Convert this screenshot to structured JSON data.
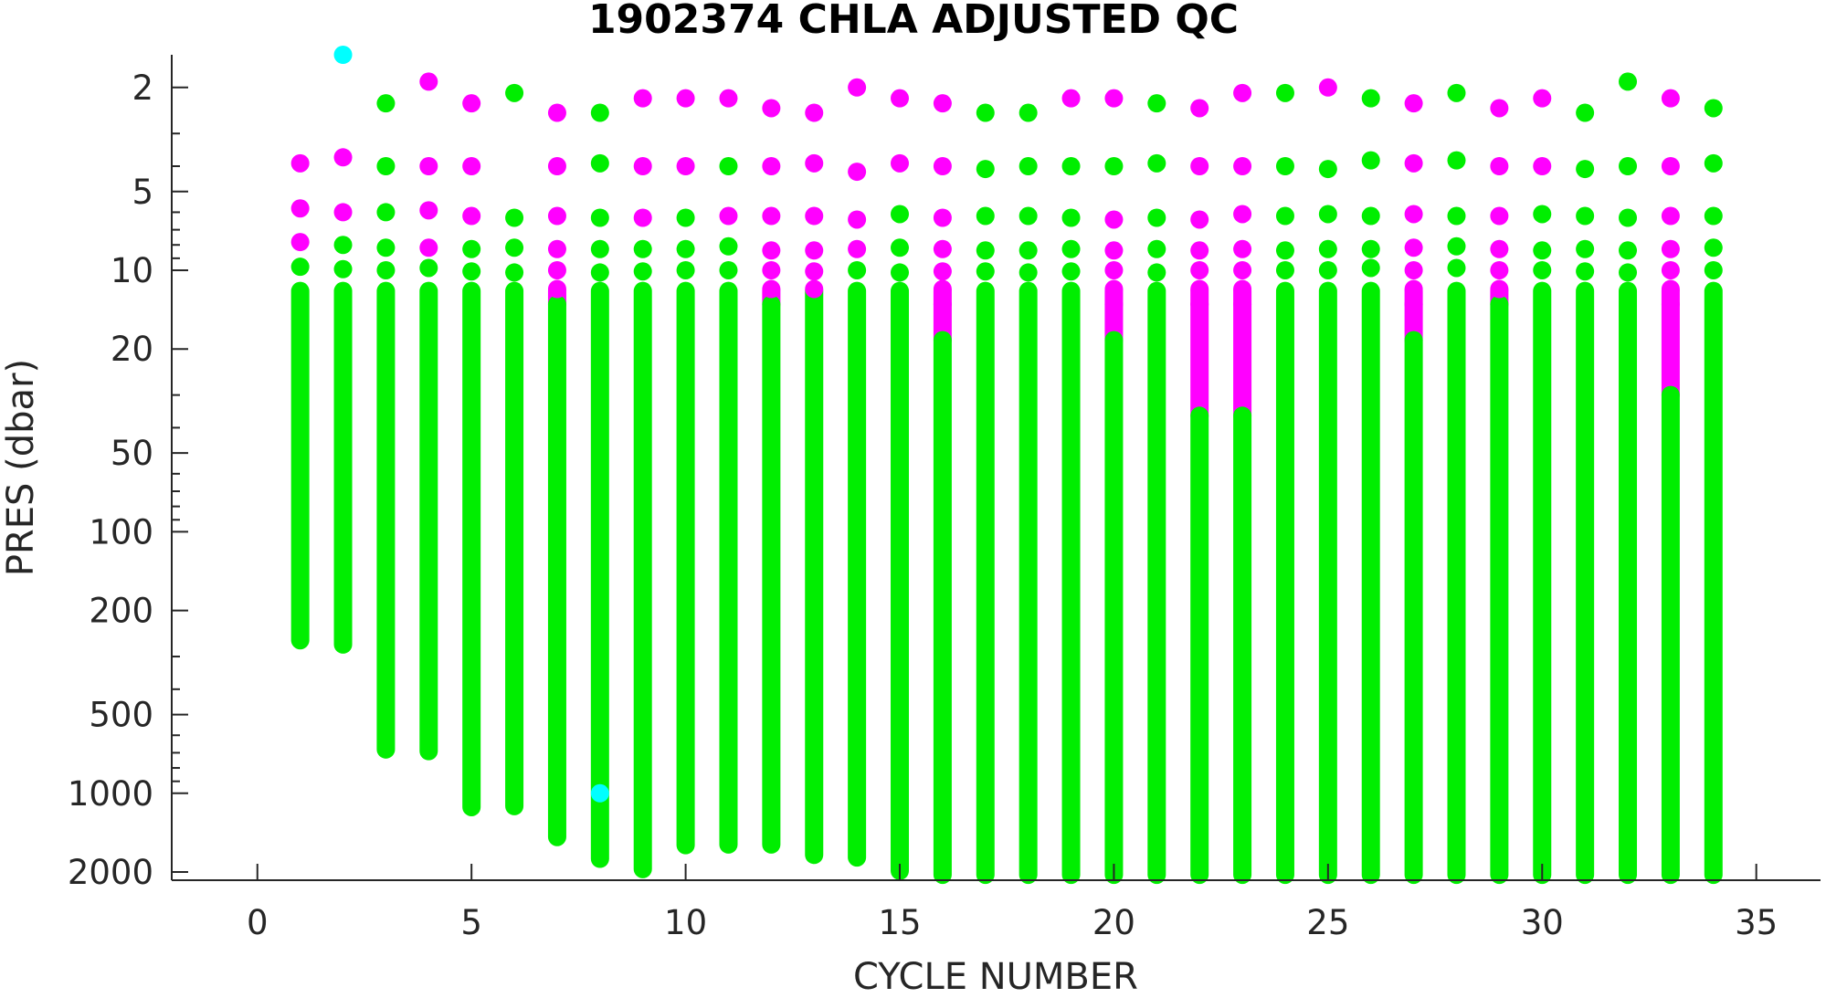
{
  "chart_data": {
    "type": "scatter",
    "title": "1902374  CHLA ADJUSTED QC",
    "xlabel": "CYCLE NUMBER",
    "ylabel": "PRES (dbar)",
    "xlim": [
      -2,
      36.5
    ],
    "ylim": [
      1.5,
      2150
    ],
    "y_scale": "log",
    "y_reversed": true,
    "x_ticks": [
      0,
      5,
      10,
      15,
      20,
      25,
      30,
      35
    ],
    "x_tick_labels": [
      "0",
      "5",
      "10",
      "15",
      "20",
      "25",
      "30",
      "35"
    ],
    "y_ticks": [
      2,
      5,
      10,
      20,
      50,
      100,
      200,
      500,
      1000,
      2000
    ],
    "y_tick_labels": [
      "2",
      "5",
      "10",
      "20",
      "50",
      "100",
      "200",
      "500",
      "1000",
      "2000"
    ],
    "grid": false,
    "legend": "none",
    "colors": {
      "green": "#00ee00",
      "magenta": "#ff00ff",
      "cyan": "#00ffff"
    },
    "profiles": [
      {
        "cycle": 1,
        "max_pres": 260,
        "flag_to": 0,
        "near": [
          [
            3.9,
            "magenta"
          ],
          [
            5.8,
            "magenta"
          ],
          [
            7.8,
            "magenta"
          ],
          [
            9.7,
            "green"
          ]
        ]
      },
      {
        "cycle": 2,
        "max_pres": 270,
        "flag_to": 0,
        "near": [
          [
            1.5,
            "cyan"
          ],
          [
            3.7,
            "magenta"
          ],
          [
            6.0,
            "magenta"
          ],
          [
            8.0,
            "green"
          ],
          [
            9.9,
            "green"
          ]
        ]
      },
      {
        "cycle": 3,
        "max_pres": 680,
        "flag_to": 0,
        "near": [
          [
            2.3,
            "green"
          ],
          [
            4.0,
            "green"
          ],
          [
            6.0,
            "green"
          ],
          [
            8.2,
            "green"
          ],
          [
            10.0,
            "green"
          ]
        ]
      },
      {
        "cycle": 4,
        "max_pres": 690,
        "flag_to": 0,
        "near": [
          [
            1.9,
            "magenta"
          ],
          [
            4.0,
            "magenta"
          ],
          [
            5.9,
            "magenta"
          ],
          [
            8.2,
            "magenta"
          ],
          [
            9.8,
            "green"
          ]
        ]
      },
      {
        "cycle": 5,
        "max_pres": 1130,
        "flag_to": 0,
        "near": [
          [
            2.3,
            "magenta"
          ],
          [
            4.0,
            "magenta"
          ],
          [
            6.2,
            "magenta"
          ],
          [
            8.3,
            "green"
          ],
          [
            10.1,
            "green"
          ]
        ]
      },
      {
        "cycle": 6,
        "max_pres": 1120,
        "flag_to": 0,
        "near": [
          [
            2.1,
            "green"
          ],
          [
            6.3,
            "green"
          ],
          [
            8.2,
            "green"
          ],
          [
            10.2,
            "green"
          ]
        ]
      },
      {
        "cycle": 7,
        "max_pres": 1470,
        "flag_to": 13.5,
        "near": [
          [
            2.5,
            "magenta"
          ],
          [
            4.0,
            "magenta"
          ],
          [
            6.2,
            "magenta"
          ],
          [
            8.3,
            "magenta"
          ],
          [
            10.0,
            "magenta"
          ],
          [
            11.8,
            "magenta"
          ]
        ]
      },
      {
        "cycle": 8,
        "max_pres": 1780,
        "flag_to": 0,
        "near": [
          [
            2.5,
            "green"
          ],
          [
            3.9,
            "green"
          ],
          [
            6.3,
            "green"
          ],
          [
            8.3,
            "green"
          ],
          [
            10.2,
            "green"
          ],
          [
            1000,
            "cyan"
          ]
        ]
      },
      {
        "cycle": 9,
        "max_pres": 1950,
        "flag_to": 0,
        "near": [
          [
            2.2,
            "magenta"
          ],
          [
            4.0,
            "magenta"
          ],
          [
            6.3,
            "magenta"
          ],
          [
            8.3,
            "green"
          ],
          [
            10.1,
            "green"
          ]
        ]
      },
      {
        "cycle": 10,
        "max_pres": 1580,
        "flag_to": 0,
        "near": [
          [
            2.2,
            "magenta"
          ],
          [
            4.0,
            "magenta"
          ],
          [
            6.3,
            "green"
          ],
          [
            8.3,
            "green"
          ],
          [
            10.0,
            "green"
          ]
        ]
      },
      {
        "cycle": 11,
        "max_pres": 1570,
        "flag_to": 0,
        "near": [
          [
            2.2,
            "magenta"
          ],
          [
            4.0,
            "green"
          ],
          [
            6.2,
            "magenta"
          ],
          [
            8.1,
            "green"
          ],
          [
            10.0,
            "green"
          ]
        ]
      },
      {
        "cycle": 12,
        "max_pres": 1570,
        "flag_to": 13.5,
        "near": [
          [
            2.4,
            "magenta"
          ],
          [
            4.0,
            "magenta"
          ],
          [
            6.2,
            "magenta"
          ],
          [
            8.4,
            "magenta"
          ],
          [
            10.0,
            "magenta"
          ],
          [
            11.8,
            "magenta"
          ]
        ]
      },
      {
        "cycle": 13,
        "max_pres": 1720,
        "flag_to": 0,
        "near": [
          [
            2.5,
            "magenta"
          ],
          [
            3.9,
            "magenta"
          ],
          [
            6.2,
            "magenta"
          ],
          [
            8.4,
            "magenta"
          ],
          [
            10.1,
            "magenta"
          ],
          [
            11.8,
            "magenta"
          ]
        ]
      },
      {
        "cycle": 14,
        "max_pres": 1760,
        "flag_to": 0,
        "near": [
          [
            2.0,
            "magenta"
          ],
          [
            4.2,
            "magenta"
          ],
          [
            6.4,
            "magenta"
          ],
          [
            8.3,
            "magenta"
          ],
          [
            10.0,
            "green"
          ]
        ]
      },
      {
        "cycle": 15,
        "max_pres": 1980,
        "flag_to": 0,
        "near": [
          [
            2.2,
            "magenta"
          ],
          [
            3.9,
            "magenta"
          ],
          [
            6.1,
            "green"
          ],
          [
            8.2,
            "green"
          ],
          [
            10.2,
            "green"
          ]
        ]
      },
      {
        "cycle": 16,
        "max_pres": 2050,
        "flag_to": 18.5,
        "near": [
          [
            2.3,
            "magenta"
          ],
          [
            4.0,
            "magenta"
          ],
          [
            6.3,
            "magenta"
          ],
          [
            8.3,
            "magenta"
          ],
          [
            10.1,
            "magenta"
          ],
          [
            11.8,
            "magenta"
          ],
          [
            13.5,
            "magenta"
          ]
        ]
      },
      {
        "cycle": 17,
        "max_pres": 2050,
        "flag_to": 0,
        "near": [
          [
            2.5,
            "green"
          ],
          [
            4.1,
            "green"
          ],
          [
            6.2,
            "green"
          ],
          [
            8.4,
            "green"
          ],
          [
            10.1,
            "green"
          ]
        ]
      },
      {
        "cycle": 18,
        "max_pres": 2050,
        "flag_to": 0,
        "near": [
          [
            2.5,
            "green"
          ],
          [
            4.0,
            "green"
          ],
          [
            6.2,
            "green"
          ],
          [
            8.4,
            "green"
          ],
          [
            10.2,
            "green"
          ]
        ]
      },
      {
        "cycle": 19,
        "max_pres": 2050,
        "flag_to": 0,
        "near": [
          [
            2.2,
            "magenta"
          ],
          [
            4.0,
            "green"
          ],
          [
            6.3,
            "green"
          ],
          [
            8.3,
            "green"
          ],
          [
            10.1,
            "green"
          ]
        ]
      },
      {
        "cycle": 20,
        "max_pres": 2050,
        "flag_to": 18.5,
        "near": [
          [
            2.2,
            "magenta"
          ],
          [
            4.0,
            "green"
          ],
          [
            6.4,
            "magenta"
          ],
          [
            8.4,
            "magenta"
          ],
          [
            10.0,
            "magenta"
          ],
          [
            11.8,
            "magenta"
          ],
          [
            13.5,
            "magenta"
          ]
        ]
      },
      {
        "cycle": 21,
        "max_pres": 2050,
        "flag_to": 0,
        "near": [
          [
            2.3,
            "green"
          ],
          [
            3.9,
            "green"
          ],
          [
            6.3,
            "green"
          ],
          [
            8.3,
            "green"
          ],
          [
            10.2,
            "green"
          ]
        ]
      },
      {
        "cycle": 22,
        "max_pres": 2050,
        "flag_to": 36,
        "near": [
          [
            2.4,
            "magenta"
          ],
          [
            4.0,
            "magenta"
          ],
          [
            6.4,
            "magenta"
          ],
          [
            8.4,
            "magenta"
          ],
          [
            10.0,
            "magenta"
          ],
          [
            11.8,
            "magenta"
          ],
          [
            13.5,
            "magenta"
          ]
        ]
      },
      {
        "cycle": 23,
        "max_pres": 2050,
        "flag_to": 36,
        "near": [
          [
            2.1,
            "magenta"
          ],
          [
            4.0,
            "magenta"
          ],
          [
            6.1,
            "magenta"
          ],
          [
            8.3,
            "magenta"
          ],
          [
            10.0,
            "magenta"
          ],
          [
            11.8,
            "magenta"
          ],
          [
            13.5,
            "magenta"
          ]
        ]
      },
      {
        "cycle": 24,
        "max_pres": 2050,
        "flag_to": 0,
        "near": [
          [
            2.1,
            "green"
          ],
          [
            4.0,
            "green"
          ],
          [
            6.2,
            "green"
          ],
          [
            8.4,
            "green"
          ],
          [
            10.0,
            "green"
          ]
        ]
      },
      {
        "cycle": 25,
        "max_pres": 2050,
        "flag_to": 0,
        "near": [
          [
            2.0,
            "magenta"
          ],
          [
            4.1,
            "green"
          ],
          [
            6.1,
            "green"
          ],
          [
            8.3,
            "green"
          ],
          [
            10.0,
            "green"
          ]
        ]
      },
      {
        "cycle": 26,
        "max_pres": 2050,
        "flag_to": 0,
        "near": [
          [
            2.2,
            "green"
          ],
          [
            3.8,
            "green"
          ],
          [
            6.2,
            "green"
          ],
          [
            8.3,
            "green"
          ],
          [
            9.8,
            "green"
          ]
        ]
      },
      {
        "cycle": 27,
        "max_pres": 2050,
        "flag_to": 18.5,
        "near": [
          [
            2.3,
            "magenta"
          ],
          [
            3.9,
            "magenta"
          ],
          [
            6.1,
            "magenta"
          ],
          [
            8.2,
            "magenta"
          ],
          [
            10.0,
            "magenta"
          ],
          [
            11.8,
            "magenta"
          ],
          [
            13.5,
            "magenta"
          ]
        ]
      },
      {
        "cycle": 28,
        "max_pres": 2050,
        "flag_to": 0,
        "near": [
          [
            2.1,
            "green"
          ],
          [
            3.8,
            "green"
          ],
          [
            6.2,
            "green"
          ],
          [
            8.1,
            "green"
          ],
          [
            9.8,
            "green"
          ]
        ]
      },
      {
        "cycle": 29,
        "max_pres": 2050,
        "flag_to": 13.5,
        "near": [
          [
            2.4,
            "magenta"
          ],
          [
            4.0,
            "magenta"
          ],
          [
            6.2,
            "magenta"
          ],
          [
            8.3,
            "magenta"
          ],
          [
            10.0,
            "magenta"
          ],
          [
            11.8,
            "magenta"
          ]
        ]
      },
      {
        "cycle": 30,
        "max_pres": 2050,
        "flag_to": 0,
        "near": [
          [
            2.2,
            "magenta"
          ],
          [
            4.0,
            "magenta"
          ],
          [
            6.1,
            "green"
          ],
          [
            8.4,
            "green"
          ],
          [
            10.0,
            "green"
          ]
        ]
      },
      {
        "cycle": 31,
        "max_pres": 2050,
        "flag_to": 0,
        "near": [
          [
            2.5,
            "green"
          ],
          [
            4.1,
            "green"
          ],
          [
            6.2,
            "green"
          ],
          [
            8.3,
            "green"
          ],
          [
            10.1,
            "green"
          ]
        ]
      },
      {
        "cycle": 32,
        "max_pres": 2050,
        "flag_to": 0,
        "near": [
          [
            1.9,
            "green"
          ],
          [
            4.0,
            "green"
          ],
          [
            6.3,
            "green"
          ],
          [
            8.4,
            "green"
          ],
          [
            10.2,
            "green"
          ]
        ]
      },
      {
        "cycle": 33,
        "max_pres": 2050,
        "flag_to": 30,
        "near": [
          [
            2.2,
            "magenta"
          ],
          [
            4.0,
            "magenta"
          ],
          [
            6.2,
            "magenta"
          ],
          [
            8.3,
            "magenta"
          ],
          [
            10.0,
            "magenta"
          ],
          [
            11.8,
            "magenta"
          ],
          [
            13.5,
            "magenta"
          ]
        ]
      },
      {
        "cycle": 34,
        "max_pres": 2050,
        "flag_to": 0,
        "near": [
          [
            2.4,
            "green"
          ],
          [
            3.9,
            "green"
          ],
          [
            6.2,
            "green"
          ],
          [
            8.2,
            "green"
          ],
          [
            10.0,
            "green"
          ]
        ]
      }
    ]
  }
}
